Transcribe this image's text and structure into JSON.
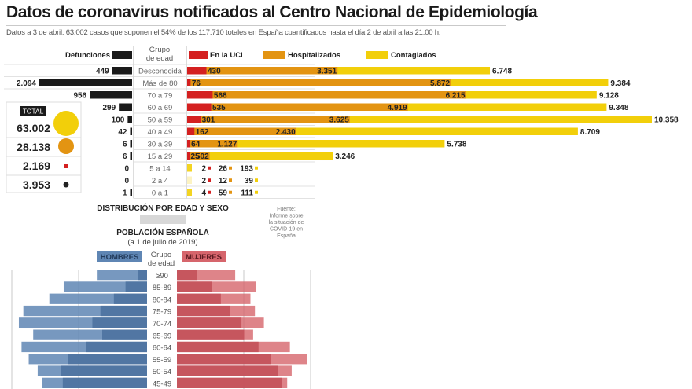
{
  "header": {
    "title": "Datos de coronavirus notificados al Centro Nacional de Epidemiología",
    "subtitle": "Datos a 3 de abril: 63.002 casos que suponen el 54% de los 117.710 totales en España cuantificados hasta el día 2 de abril a las 21:00 h."
  },
  "colors": {
    "deaths": "#1a1a1a",
    "icu": "#d42020",
    "hospital": "#e39412",
    "infected": "#f2cf0a",
    "men": "#5f86b4",
    "men_dark": "#4d72a0",
    "women": "#d6656c",
    "women_dark": "#c24e57"
  },
  "totals": {
    "label": "TOTAL",
    "items": [
      {
        "value": "63.002",
        "series": "Contagiados",
        "icon": "yellow-circle-icon"
      },
      {
        "value": "28.138",
        "series": "Hospitalizados",
        "icon": "orange-circle-icon"
      },
      {
        "value": "2.169",
        "series": "En la UCI",
        "icon": "red-square-icon"
      },
      {
        "value": "3.953",
        "series": "Defunciones",
        "icon": "black-circle-icon"
      }
    ]
  },
  "chart_data": [
    {
      "type": "bar",
      "title": "Datos de coronavirus notificados al Centro Nacional de Epidemiología",
      "category_header": "Grupo de edad",
      "categories": [
        "Desconocida",
        "Más de 80",
        "70 a 79",
        "60 a 69",
        "50 a 59",
        "40 a 49",
        "30 a 39",
        "15 a 29",
        "5 a 14",
        "2 a 4",
        "0 a 1"
      ],
      "series": [
        {
          "name": "Defunciones",
          "values": [
            449,
            2094
          ],
          "labels": [
            "449",
            "2.094"
          ]
        },
        {
          "name": "En la UCI",
          "values": [],
          "labels": []
        },
        {
          "name": "Hospitalizados",
          "values": [],
          "labels": []
        },
        {
          "name": "Contagiados",
          "values": [],
          "labels": []
        }
      ],
      "legend": [
        "Defunciones",
        "En la UCI",
        "Hospitalizados",
        "Contagiados"
      ],
      "legend_position": "top"
    },
    {
      "type": "bar",
      "title": "DISTRIBUCIÓN POR EDAD Y SEXO",
      "subtitle": "POBLACIÓN ESPAÑOLA",
      "subtitle2": "(a 1 de julio de 2019)",
      "source": "Fuente: Informe sobre la situación de COVID-19 en España",
      "category_header": "Grupo de edad",
      "categories": [
        "≥90",
        "85-89",
        "80-84",
        "75-79",
        "70-74",
        "65-69",
        "60-64",
        "55-59",
        "50-54",
        "45-49"
      ],
      "legend": [
        "HOMBRES",
        "MUJERES"
      ],
      "series": [
        {
          "name": "HOMBRES (casos)",
          "values": [
            1.0,
            2.4,
            3.7,
            5.2,
            6.1,
            5.0,
            6.8,
            8.8,
            9.6,
            9.4
          ]
        },
        {
          "name": "HOMBRES (población)",
          "values": [
            5.6,
            9.3,
            10.9,
            13.8,
            14.3,
            12.7,
            14.0,
            13.2,
            12.2,
            11.7
          ]
        },
        {
          "name": "MUJERES (casos)",
          "values": [
            2.2,
            3.9,
            4.9,
            5.9,
            7.2,
            7.5,
            9.1,
            10.5,
            11.3,
            11.7
          ]
        },
        {
          "name": "MUJERES (población)",
          "values": [
            6.5,
            8.8,
            8.2,
            8.7,
            9.7,
            8.5,
            12.6,
            14.5,
            12.8,
            12.3
          ]
        }
      ]
    }
  ],
  "top_chart": {
    "legend": {
      "deaths": "Defunciones",
      "icu": "En la UCI",
      "hospital": "Hospitalizados",
      "infected": "Contagiados"
    },
    "group_header_line1": "Grupo",
    "group_header_line2": "de edad",
    "rows": [
      {
        "group": "Desconocida",
        "deaths": 449,
        "deaths_label": "449",
        "icu": 430,
        "icu_label": "430",
        "hosp": 3351,
        "hosp_label": "3.351",
        "inf": 6748,
        "inf_label": "6.748"
      },
      {
        "group": "Más de 80",
        "deaths": 2094,
        "deaths_label": "2.094",
        "icu": 76,
        "icu_label": "76",
        "hosp": 5872,
        "hosp_label": "5.872",
        "inf": 9384,
        "inf_label": "9.384"
      },
      {
        "group": "70 a 79",
        "deaths": 956,
        "deaths_label": "956",
        "icu": 568,
        "icu_label": "568",
        "hosp": 6215,
        "hosp_label": "6.215",
        "inf": 9128,
        "inf_label": "9.128"
      },
      {
        "group": "60 a 69",
        "deaths": 299,
        "deaths_label": "299",
        "icu": 535,
        "icu_label": "535",
        "hosp": 4919,
        "hosp_label": "4.919",
        "inf": 9348,
        "inf_label": "9.348"
      },
      {
        "group": "50 a 59",
        "deaths": 100,
        "deaths_label": "100",
        "icu": 301,
        "icu_label": "301",
        "hosp": 3625,
        "hosp_label": "3.625",
        "inf": 10358,
        "inf_label": "10.358"
      },
      {
        "group": "40 a 49",
        "deaths": 42,
        "deaths_label": "42",
        "icu": 162,
        "icu_label": "162",
        "hosp": 2430,
        "hosp_label": "2.430",
        "inf": 8709,
        "inf_label": "8.709"
      },
      {
        "group": "30 a 39",
        "deaths": 6,
        "deaths_label": "6",
        "icu": 64,
        "icu_label": "64",
        "hosp": 1127,
        "hosp_label": "1.127",
        "inf": 5738,
        "inf_label": "5.738"
      },
      {
        "group": "15 a 29",
        "deaths": 6,
        "deaths_label": "6",
        "icu": 25,
        "icu_label": "25",
        "hosp": 502,
        "hosp_label": "502",
        "inf": 3246,
        "inf_label": "3.246"
      },
      {
        "group": "5 a 14",
        "deaths": 0,
        "deaths_label": "0",
        "icu": 2,
        "icu_label": "2",
        "hosp": 26,
        "hosp_label": "26",
        "inf": 193,
        "inf_label": "193"
      },
      {
        "group": "2 a 4",
        "deaths": 0,
        "deaths_label": "0",
        "icu": 2,
        "icu_label": "2",
        "hosp": 12,
        "hosp_label": "12",
        "inf": 39,
        "inf_label": "39"
      },
      {
        "group": "0 a 1",
        "deaths": 1,
        "deaths_label": "1",
        "icu": 4,
        "icu_label": "4",
        "hosp": 59,
        "hosp_label": "59",
        "inf": 111,
        "inf_label": "111"
      }
    ]
  },
  "pyramid": {
    "title": "DISTRIBUCIÓN POR EDAD Y SEXO",
    "subtitle": "POBLACIÓN ESPAÑOLA",
    "subtitle2": "(a 1 de julio de 2019)",
    "source_lines": [
      "Fuente:",
      "Informe sobre",
      "la situación de",
      "COVID-19 en",
      "España"
    ],
    "men_label": "HOMBRES",
    "women_label": "MUJERES",
    "group_header_line1": "Grupo",
    "group_header_line2": "de edad"
  }
}
